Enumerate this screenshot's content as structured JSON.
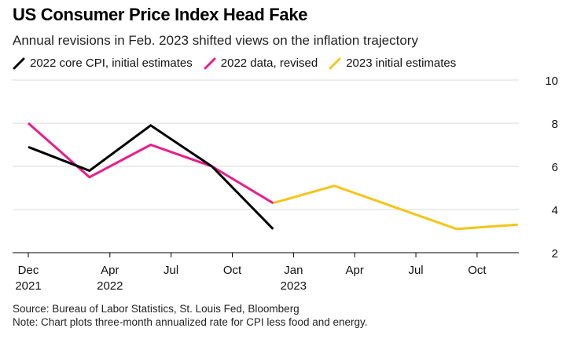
{
  "header": {
    "title": "US Consumer Price Index Head Fake",
    "subtitle": "Annual revisions in Feb. 2023 shifted views on the inflation trajectory"
  },
  "footer": {
    "source": "Source: Bureau of Labor Statistics, St. Louis Fed, Bloomberg",
    "note": "Note: Chart plots three-month annualized rate for CPI less food and energy."
  },
  "chart_data": {
    "type": "line",
    "title": "US Consumer Price Index Head Fake",
    "subtitle": "Annual revisions in Feb. 2023 shifted views on the inflation trajectory",
    "xlabel": "",
    "ylabel": "",
    "ylim": [
      2,
      10
    ],
    "yticks": [
      2,
      4,
      6,
      8,
      10
    ],
    "y_axis_side": "right",
    "grid": true,
    "legend_position": "top-left",
    "xticks": [
      {
        "month": "2021-12",
        "label": [
          "Dec",
          "2021"
        ]
      },
      {
        "month": "2022-04",
        "label": [
          "Apr",
          "2022"
        ]
      },
      {
        "month": "2022-07",
        "label": [
          "Jul"
        ]
      },
      {
        "month": "2022-10",
        "label": [
          "Oct"
        ]
      },
      {
        "month": "2023-01",
        "label": [
          "Jan",
          "2023"
        ]
      },
      {
        "month": "2023-04",
        "label": [
          "Apr"
        ]
      },
      {
        "month": "2023-07",
        "label": [
          "Jul"
        ]
      },
      {
        "month": "2023-10",
        "label": [
          "Oct"
        ]
      }
    ],
    "series": [
      {
        "name": "2022 core CPI, initial estimates",
        "color": "#000000",
        "points": [
          {
            "x": "2021-12",
            "y": 6.9
          },
          {
            "x": "2022-03",
            "y": 5.8
          },
          {
            "x": "2022-06",
            "y": 7.9
          },
          {
            "x": "2022-09",
            "y": 6.0
          },
          {
            "x": "2022-12",
            "y": 3.1
          }
        ]
      },
      {
        "name": "2022 data, revised",
        "color": "#ec1c8a",
        "points": [
          {
            "x": "2021-12",
            "y": 8.0
          },
          {
            "x": "2022-03",
            "y": 5.5
          },
          {
            "x": "2022-06",
            "y": 7.0
          },
          {
            "x": "2022-09",
            "y": 6.0
          },
          {
            "x": "2022-12",
            "y": 4.3
          }
        ]
      },
      {
        "name": "2023 initial estimates",
        "color": "#f5c518",
        "points": [
          {
            "x": "2022-12",
            "y": 4.3
          },
          {
            "x": "2023-03",
            "y": 5.1
          },
          {
            "x": "2023-06",
            "y": 4.1
          },
          {
            "x": "2023-09",
            "y": 3.1
          },
          {
            "x": "2023-12",
            "y": 3.3
          }
        ]
      }
    ]
  }
}
